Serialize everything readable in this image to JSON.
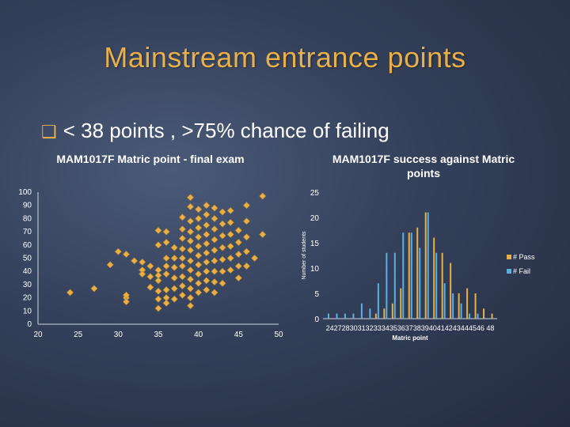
{
  "slide": {
    "title": "Mainstream entrance points",
    "bullet_mark": "❑",
    "bullet_text": "< 38 points , >75% chance of failing"
  },
  "colors": {
    "gold": "#e8b04a",
    "blue": "#5bb0e0",
    "white": "#ffffff"
  },
  "chart_data": [
    {
      "type": "scatter",
      "title": "MAM1017F Matric point - final exam",
      "xlim": [
        20,
        50
      ],
      "ylim": [
        0,
        100
      ],
      "xticks": [
        20,
        25,
        30,
        35,
        40,
        45,
        50
      ],
      "yticks": [
        0,
        10,
        20,
        30,
        40,
        50,
        60,
        70,
        80,
        90,
        100
      ],
      "marker_color": "#e8b04a",
      "points": [
        [
          24,
          24
        ],
        [
          27,
          27
        ],
        [
          29,
          45
        ],
        [
          30,
          55
        ],
        [
          31,
          53
        ],
        [
          32,
          48
        ],
        [
          31,
          20
        ],
        [
          31,
          17
        ],
        [
          31,
          22
        ],
        [
          33,
          47
        ],
        [
          33,
          41
        ],
        [
          33,
          38
        ],
        [
          34,
          36
        ],
        [
          34,
          44
        ],
        [
          34,
          28
        ],
        [
          35,
          41
        ],
        [
          35,
          37
        ],
        [
          35,
          60
        ],
        [
          35,
          71
        ],
        [
          35,
          19
        ],
        [
          35,
          12
        ],
        [
          35,
          33
        ],
        [
          35,
          25
        ],
        [
          36,
          70
        ],
        [
          36,
          62
        ],
        [
          36,
          50
        ],
        [
          36,
          44
        ],
        [
          36,
          26
        ],
        [
          36,
          20
        ],
        [
          36,
          16
        ],
        [
          36,
          38
        ],
        [
          37,
          58
        ],
        [
          37,
          50
        ],
        [
          37,
          43
        ],
        [
          37,
          35
        ],
        [
          37,
          27
        ],
        [
          37,
          19
        ],
        [
          38,
          81
        ],
        [
          38,
          72
        ],
        [
          38,
          65
        ],
        [
          38,
          57
        ],
        [
          38,
          50
        ],
        [
          38,
          44
        ],
        [
          38,
          36
        ],
        [
          38,
          29
        ],
        [
          38,
          22
        ],
        [
          39,
          96
        ],
        [
          39,
          89
        ],
        [
          39,
          78
        ],
        [
          39,
          70
        ],
        [
          39,
          63
        ],
        [
          39,
          56
        ],
        [
          39,
          48
        ],
        [
          39,
          41
        ],
        [
          39,
          34
        ],
        [
          39,
          27
        ],
        [
          39,
          20
        ],
        [
          39,
          14
        ],
        [
          40,
          87
        ],
        [
          40,
          80
        ],
        [
          40,
          73
        ],
        [
          40,
          66
        ],
        [
          40,
          59
        ],
        [
          40,
          52
        ],
        [
          40,
          45
        ],
        [
          40,
          38
        ],
        [
          40,
          31
        ],
        [
          40,
          24
        ],
        [
          41,
          90
        ],
        [
          41,
          83
        ],
        [
          41,
          75
        ],
        [
          41,
          68
        ],
        [
          41,
          61
        ],
        [
          41,
          54
        ],
        [
          41,
          47
        ],
        [
          41,
          40
        ],
        [
          41,
          33
        ],
        [
          41,
          26
        ],
        [
          42,
          88
        ],
        [
          42,
          80
        ],
        [
          42,
          72
        ],
        [
          42,
          64
        ],
        [
          42,
          56
        ],
        [
          42,
          48
        ],
        [
          42,
          40
        ],
        [
          42,
          32
        ],
        [
          42,
          24
        ],
        [
          43,
          85
        ],
        [
          43,
          76
        ],
        [
          43,
          67
        ],
        [
          43,
          58
        ],
        [
          43,
          49
        ],
        [
          43,
          40
        ],
        [
          43,
          31
        ],
        [
          44,
          86
        ],
        [
          44,
          77
        ],
        [
          44,
          68
        ],
        [
          44,
          59
        ],
        [
          44,
          50
        ],
        [
          44,
          41
        ],
        [
          45,
          71
        ],
        [
          45,
          62
        ],
        [
          45,
          53
        ],
        [
          45,
          44
        ],
        [
          45,
          35
        ],
        [
          46,
          90
        ],
        [
          46,
          78
        ],
        [
          46,
          66
        ],
        [
          46,
          55
        ],
        [
          46,
          44
        ],
        [
          47,
          50
        ],
        [
          48,
          68
        ],
        [
          48,
          97
        ]
      ]
    },
    {
      "type": "bar",
      "title": "MAM1017F success against Matric points",
      "ylabel": "Number of students",
      "xlabel": "Matric point",
      "ylim": [
        0,
        25
      ],
      "yticks": [
        0,
        5,
        10,
        15,
        20,
        25
      ],
      "categories": [
        "24",
        "27",
        "28",
        "30",
        "31",
        "32",
        "33",
        "34",
        "35",
        "36",
        "37",
        "38",
        "39",
        "40",
        "41",
        "42",
        "43",
        "44",
        "45",
        "46",
        "48"
      ],
      "category_label": "2427283031323334353637383940414243444546 48",
      "series": [
        {
          "name": "# Pass",
          "color": "#e8b04a",
          "values": [
            0,
            0,
            0,
            0,
            0,
            0,
            1,
            2,
            3,
            6,
            17,
            18,
            21,
            16,
            13,
            11,
            5,
            6,
            5,
            2,
            1
          ]
        },
        {
          "name": "# Fail",
          "color": "#5bb0e0",
          "values": [
            1,
            1,
            1,
            1,
            3,
            2,
            7,
            13,
            13,
            17,
            17,
            14,
            21,
            13,
            7,
            5,
            3,
            1,
            1,
            0,
            0
          ]
        }
      ],
      "legend": "right"
    }
  ]
}
